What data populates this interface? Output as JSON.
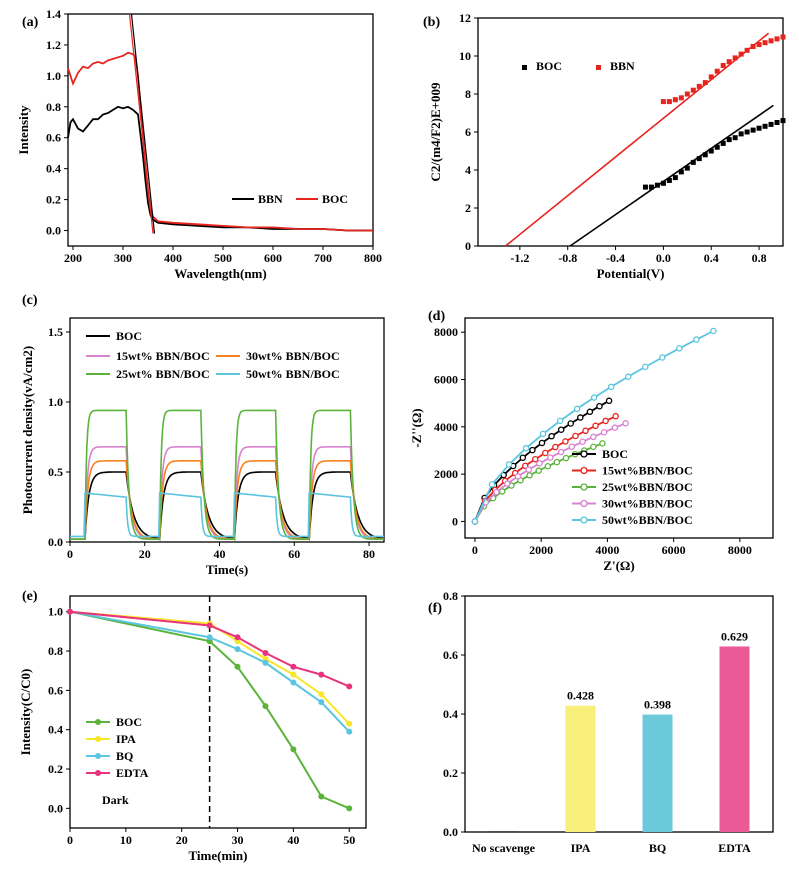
{
  "chart_data": [
    {
      "panel": "(a)",
      "type": "line",
      "xlabel": "Wavelength(nm)",
      "ylabel": "Intensity",
      "xlim": [
        190,
        800
      ],
      "ylim": [
        -0.1,
        1.4
      ],
      "xticks": [
        200,
        300,
        400,
        500,
        600,
        700,
        800
      ],
      "yticks": [
        0.0,
        0.2,
        0.4,
        0.6,
        0.8,
        1.0,
        1.2,
        1.4
      ],
      "legend": "bottom-right",
      "series": [
        {
          "name": "BBN",
          "color": "#000000",
          "x": [
            190,
            195,
            200,
            210,
            220,
            230,
            240,
            250,
            260,
            270,
            280,
            290,
            300,
            310,
            320,
            330,
            335,
            340,
            345,
            350,
            355,
            360,
            370,
            400,
            450,
            500,
            550,
            600,
            650,
            700,
            750,
            800
          ],
          "y": [
            0.6,
            0.7,
            0.72,
            0.66,
            0.64,
            0.68,
            0.72,
            0.72,
            0.75,
            0.76,
            0.78,
            0.8,
            0.79,
            0.8,
            0.78,
            0.75,
            0.62,
            0.48,
            0.32,
            0.18,
            0.1,
            0.07,
            0.05,
            0.04,
            0.03,
            0.02,
            0.02,
            0.01,
            0.01,
            0.01,
            0.0,
            0.0
          ]
        },
        {
          "name": "BOC",
          "color": "#e8241e",
          "x": [
            190,
            195,
            200,
            210,
            220,
            230,
            240,
            250,
            260,
            270,
            280,
            290,
            300,
            310,
            320,
            325,
            330,
            335,
            340,
            345,
            350,
            355,
            360,
            370,
            400,
            450,
            500,
            550,
            600,
            650,
            700,
            750,
            800
          ],
          "y": [
            1.05,
            1.0,
            0.95,
            1.02,
            1.06,
            1.05,
            1.08,
            1.09,
            1.08,
            1.1,
            1.11,
            1.12,
            1.13,
            1.15,
            1.14,
            1.12,
            1.0,
            0.8,
            0.6,
            0.42,
            0.26,
            0.14,
            0.09,
            0.06,
            0.05,
            0.04,
            0.03,
            0.02,
            0.02,
            0.01,
            0.01,
            0.0,
            0.0
          ]
        }
      ],
      "tangent_lines": [
        {
          "color": "#000000",
          "x": [
            317,
            363
          ],
          "y": [
            1.4,
            -0.02
          ]
        },
        {
          "color": "#e8241e",
          "x": [
            313,
            360
          ],
          "y": [
            1.4,
            -0.02
          ]
        }
      ]
    },
    {
      "panel": "(b)",
      "type": "scatter",
      "xlabel": "Potential(V)",
      "ylabel": "C2/(m4/F2)E+009",
      "xlim": [
        -1.55,
        1.0
      ],
      "ylim": [
        0,
        12
      ],
      "xticks": [
        -1.2,
        -0.8,
        -0.4,
        0.0,
        0.4,
        0.8
      ],
      "ytick_labels": [
        "0",
        "2",
        "4",
        "6",
        "8",
        "10",
        "12"
      ],
      "yticks": [
        0,
        2,
        4,
        6,
        8,
        10,
        12
      ],
      "legend": "top-left",
      "series": [
        {
          "name": "BOC",
          "color": "#000000",
          "x": [
            -0.15,
            -0.1,
            -0.05,
            0.0,
            0.05,
            0.1,
            0.15,
            0.2,
            0.25,
            0.3,
            0.35,
            0.4,
            0.45,
            0.5,
            0.55,
            0.6,
            0.65,
            0.7,
            0.75,
            0.8,
            0.85,
            0.9,
            0.95,
            1.0
          ],
          "y": [
            3.1,
            3.1,
            3.2,
            3.3,
            3.45,
            3.6,
            3.9,
            4.1,
            4.4,
            4.6,
            4.8,
            5.0,
            5.2,
            5.4,
            5.6,
            5.7,
            5.9,
            6.0,
            6.1,
            6.2,
            6.3,
            6.4,
            6.5,
            6.6
          ]
        },
        {
          "name": "BBN",
          "color": "#e8241e",
          "x": [
            0.0,
            0.05,
            0.1,
            0.15,
            0.2,
            0.25,
            0.3,
            0.35,
            0.4,
            0.45,
            0.5,
            0.55,
            0.6,
            0.65,
            0.7,
            0.75,
            0.8,
            0.85,
            0.9,
            0.95,
            1.0
          ],
          "y": [
            7.6,
            7.6,
            7.7,
            7.8,
            8.0,
            8.2,
            8.4,
            8.6,
            8.9,
            9.2,
            9.5,
            9.7,
            9.9,
            10.1,
            10.3,
            10.5,
            10.6,
            10.7,
            10.8,
            10.9,
            11.0
          ]
        }
      ],
      "fit_lines": [
        {
          "color": "#000000",
          "x": [
            -0.78,
            0.92
          ],
          "y": [
            0,
            7.4
          ]
        },
        {
          "color": "#e8241e",
          "x": [
            -1.32,
            0.88
          ],
          "y": [
            0,
            11.2
          ]
        }
      ]
    },
    {
      "panel": "(c)",
      "type": "line",
      "xlabel": "Time(s)",
      "ylabel": "Photocurrent density(vA/cm2)",
      "xlim": [
        0,
        84
      ],
      "ylim": [
        0,
        1.6
      ],
      "xticks": [
        0,
        20,
        40,
        60,
        80
      ],
      "yticks": [
        0.0,
        0.5,
        1.0,
        1.5
      ],
      "legend": "top-left",
      "on_periods": [
        [
          4,
          15
        ],
        [
          24,
          35
        ],
        [
          44,
          55
        ],
        [
          64,
          75
        ]
      ],
      "series": [
        {
          "name": "BOC",
          "color": "#000000",
          "on": 0.5,
          "rise": 2.0,
          "fall": 2.5,
          "base": 0.02
        },
        {
          "name": "15wt% BBN/BOC",
          "color": "#d982cf",
          "on": 0.68,
          "rise": 1.2,
          "fall": 1.5,
          "base": 0.02
        },
        {
          "name": "30wt% BBN/BOC",
          "color": "#f58220",
          "on": 0.58,
          "rise": 1.5,
          "fall": 1.8,
          "base": 0.02
        },
        {
          "name": "25wt% BBN/BOC",
          "color": "#5ab43c",
          "on": 0.94,
          "rise": 0.8,
          "fall": 1.0,
          "base": 0.02
        },
        {
          "name": "50wt% BBN/BOC",
          "color": "#5bc5e0",
          "on": 0.35,
          "rise": 0.3,
          "fall": 0.5,
          "base": 0.04
        }
      ]
    },
    {
      "panel": "(d)",
      "type": "line",
      "xlabel": "Z'(Ω)",
      "ylabel": "-Z''(Ω)",
      "xlim": [
        -300,
        9000
      ],
      "ylim": [
        -700,
        8600
      ],
      "xticks": [
        0,
        2000,
        4000,
        6000,
        8000
      ],
      "yticks": [
        0,
        2000,
        4000,
        6000,
        8000
      ],
      "legend": "bottom-right",
      "series": [
        {
          "name": "BOC",
          "color": "#000000",
          "end_x": 4050,
          "end_y": 5100
        },
        {
          "name": "15wt%BBN/BOC",
          "color": "#e8241e",
          "end_x": 4250,
          "end_y": 4450
        },
        {
          "name": "25wt%BBN/BOC",
          "color": "#5ab43c",
          "end_x": 3850,
          "end_y": 3300
        },
        {
          "name": "30wt%BBN/BOC",
          "color": "#d982cf",
          "end_x": 4550,
          "end_y": 4150
        },
        {
          "name": "50wt%BBN/BOC",
          "color": "#5bc5e0",
          "end_x": 7200,
          "end_y": 8050
        }
      ]
    },
    {
      "panel": "(e)",
      "type": "line",
      "xlabel": "Time(min)",
      "ylabel": "Intensity(C/C0)",
      "xlim": [
        0,
        53
      ],
      "ylim": [
        -0.1,
        1.08
      ],
      "xticks": [
        0,
        10,
        20,
        30,
        40,
        50
      ],
      "yticks": [
        0.0,
        0.2,
        0.4,
        0.6,
        0.8,
        1.0
      ],
      "legend": "bottom-left",
      "annotation": "Dark",
      "dashed_x": 25,
      "series": [
        {
          "name": "BOC",
          "color": "#5ab43c",
          "x": [
            0,
            25,
            30,
            35,
            40,
            45,
            50
          ],
          "y": [
            1.0,
            0.85,
            0.72,
            0.52,
            0.3,
            0.06,
            0.0
          ]
        },
        {
          "name": "IPA",
          "color": "#f7e629",
          "x": [
            0,
            25,
            30,
            35,
            40,
            45,
            50
          ],
          "y": [
            1.0,
            0.94,
            0.85,
            0.76,
            0.68,
            0.58,
            0.43
          ]
        },
        {
          "name": "BQ",
          "color": "#5bc5e0",
          "x": [
            0,
            25,
            30,
            35,
            40,
            45,
            50
          ],
          "y": [
            1.0,
            0.87,
            0.81,
            0.74,
            0.64,
            0.54,
            0.39
          ]
        },
        {
          "name": "EDTA",
          "color": "#e8337d",
          "x": [
            0,
            25,
            30,
            35,
            40,
            45,
            50
          ],
          "y": [
            1.0,
            0.93,
            0.87,
            0.79,
            0.72,
            0.68,
            0.62
          ]
        }
      ]
    },
    {
      "panel": "(f)",
      "type": "bar",
      "ylim": [
        0,
        0.8
      ],
      "yticks": [
        0.0,
        0.2,
        0.4,
        0.6,
        0.8
      ],
      "categories": [
        "No scavenge",
        "IPA",
        "BQ",
        "EDTA"
      ],
      "values": [
        0.0,
        0.428,
        0.398,
        0.629
      ],
      "value_labels": [
        "",
        "0.428",
        "0.398",
        "0.629"
      ],
      "colors": [
        "#4a4a4a",
        "#f7ef7a",
        "#6cc9dc",
        "#ea5a96"
      ]
    }
  ]
}
